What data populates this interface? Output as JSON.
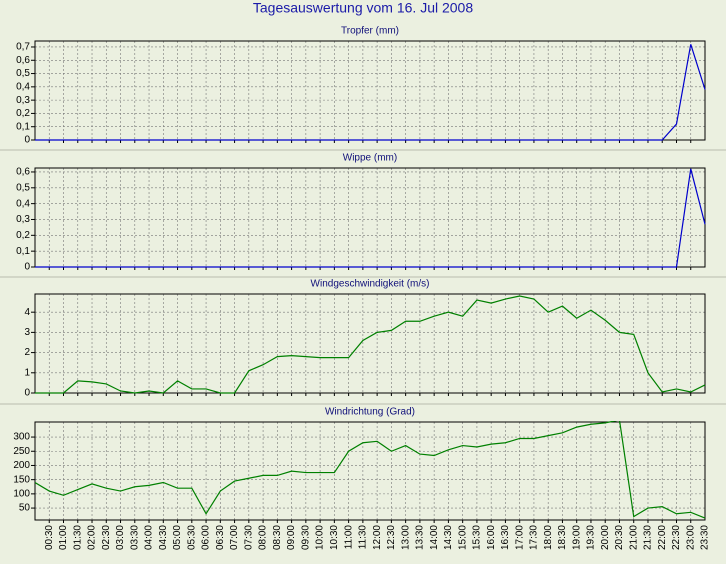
{
  "title": "Tagesauswertung vom 16. Jul 2008",
  "chart_data": [
    {
      "type": "line",
      "title": "Tropfer (mm)",
      "color": "#0000cc",
      "values": [
        0,
        0,
        0,
        0,
        0,
        0,
        0,
        0,
        0,
        0,
        0,
        0,
        0,
        0,
        0,
        0,
        0,
        0,
        0,
        0,
        0,
        0,
        0,
        0,
        0,
        0,
        0,
        0,
        0,
        0,
        0,
        0,
        0,
        0,
        0,
        0,
        0,
        0,
        0,
        0,
        0,
        0,
        0,
        0,
        0,
        0.12,
        0.72,
        0.38
      ],
      "ylim": [
        0,
        0.745
      ],
      "yticks": [
        0,
        {
          "value": 0.1,
          "label": "0,1"
        },
        {
          "value": 0.2,
          "label": "0,2"
        },
        {
          "value": 0.3,
          "label": "0,3"
        },
        {
          "value": 0.4,
          "label": "0,4"
        },
        {
          "value": 0.5,
          "label": "0,5"
        },
        {
          "value": 0.6,
          "label": "0,6"
        },
        {
          "value": 0.7,
          "label": "0,7"
        }
      ],
      "grid": true
    },
    {
      "type": "line",
      "title": "Wippe (mm)",
      "color": "#0000cc",
      "values": [
        0,
        0,
        0,
        0,
        0,
        0,
        0,
        0,
        0,
        0,
        0,
        0,
        0,
        0,
        0,
        0,
        0,
        0,
        0,
        0,
        0,
        0,
        0,
        0,
        0,
        0,
        0,
        0,
        0,
        0,
        0,
        0,
        0,
        0,
        0,
        0,
        0,
        0,
        0,
        0,
        0,
        0,
        0,
        0,
        0,
        0,
        0.62,
        0.27
      ],
      "ylim": [
        0,
        0.625
      ],
      "yticks": [
        0,
        {
          "value": 0.1,
          "label": "0,1"
        },
        {
          "value": 0.2,
          "label": "0,2"
        },
        {
          "value": 0.3,
          "label": "0,3"
        },
        {
          "value": 0.4,
          "label": "0,4"
        },
        {
          "value": 0.5,
          "label": "0,5"
        },
        {
          "value": 0.6,
          "label": "0,6"
        }
      ],
      "grid": true
    },
    {
      "type": "line",
      "title": "Windgeschwindigkeit (m/s)",
      "color": "#008000",
      "values": [
        0,
        0,
        0,
        0.6,
        0.55,
        0.45,
        0.1,
        0,
        0.1,
        0,
        0.6,
        0.2,
        0.2,
        0,
        0,
        1.1,
        1.4,
        1.8,
        1.85,
        1.8,
        1.75,
        1.75,
        1.75,
        2.6,
        3.0,
        3.1,
        3.55,
        3.55,
        3.8,
        4.0,
        3.8,
        4.6,
        4.45,
        4.65,
        4.8,
        4.65,
        4.0,
        4.3,
        3.7,
        4.1,
        3.6,
        3.0,
        2.9,
        1.0,
        0.05,
        0.2,
        0.05,
        0.4
      ],
      "ylim": [
        0,
        4.9
      ],
      "yticks": [
        0,
        1,
        2,
        3,
        4
      ],
      "grid": true
    },
    {
      "type": "line",
      "title": "Windrichtung (Grad)",
      "color": "#008000",
      "categories": [
        null,
        "00:30",
        "01:00",
        "01:30",
        "02:00",
        "02:30",
        "03:00",
        "03:30",
        "04:00",
        "04:30",
        "05:00",
        "05:30",
        "06:00",
        "06:30",
        "07:00",
        "07:30",
        "08:00",
        "08:30",
        "09:00",
        "09:30",
        "10:00",
        "10:30",
        "11:00",
        "11:30",
        "12:00",
        "12:30",
        "13:00",
        "13:30",
        "14:00",
        "14:30",
        "15:00",
        "15:30",
        "16:00",
        "16:30",
        "17:00",
        "17:30",
        "18:00",
        "18:30",
        "19:00",
        "19:30",
        "20:00",
        "20:30",
        "21:00",
        "21:30",
        "22:00",
        "22:30",
        "23:00",
        "23:30"
      ],
      "values": [
        140,
        110,
        95,
        115,
        135,
        120,
        110,
        125,
        130,
        140,
        120,
        120,
        30,
        110,
        145,
        155,
        165,
        165,
        180,
        175,
        175,
        175,
        250,
        280,
        285,
        250,
        270,
        240,
        235,
        255,
        270,
        265,
        275,
        280,
        295,
        295,
        305,
        315,
        335,
        345,
        350,
        360,
        20,
        50,
        55,
        30,
        35,
        15
      ],
      "ylim": [
        8,
        353
      ],
      "yticks": [
        50,
        100,
        150,
        200,
        250,
        300
      ],
      "grid": true
    }
  ]
}
